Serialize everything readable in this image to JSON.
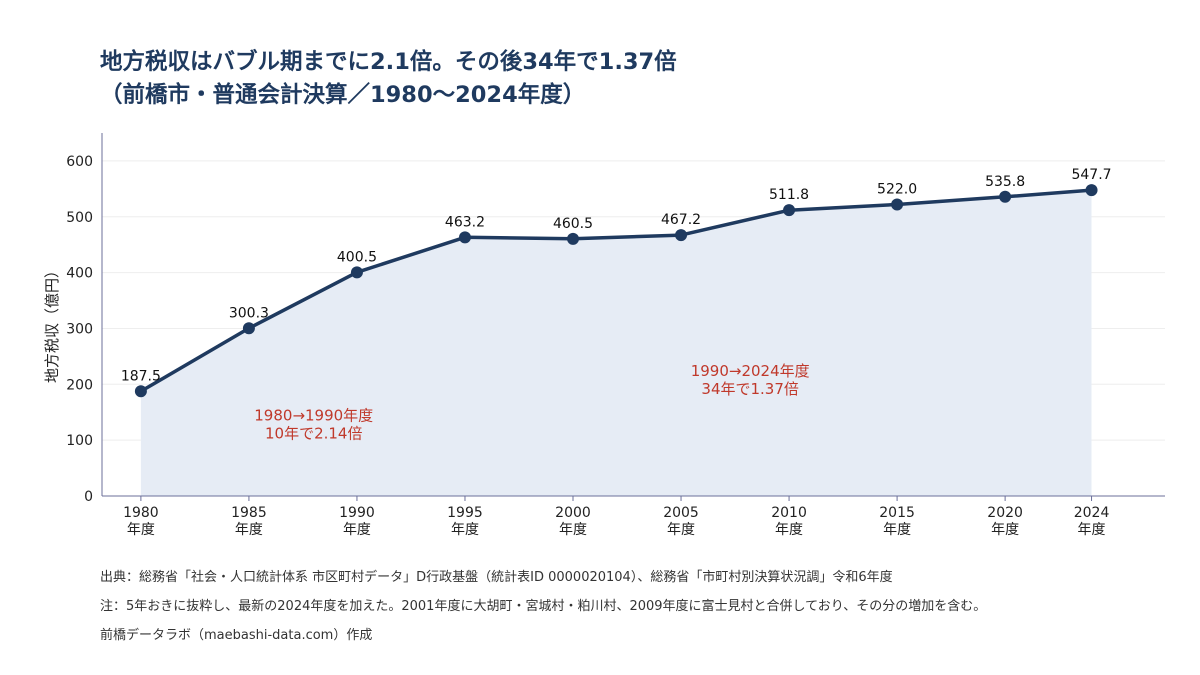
{
  "title": {
    "line1": "地方税収はバブル期までに2.1倍。その後34年で1.37倍",
    "line2": "（前橋市・普通会計決算／1980〜2024年度）"
  },
  "chart_data": {
    "type": "line",
    "title": "地方税収はバブル期までに2.1倍。その後34年で1.37倍（前橋市・普通会計決算／1980〜2024年度）",
    "x": [
      1980,
      1985,
      1990,
      1995,
      2000,
      2005,
      2010,
      2015,
      2020,
      2024
    ],
    "x_tick_labels": [
      "1980",
      "1985",
      "1990",
      "1995",
      "2000",
      "2005",
      "2010",
      "2015",
      "2020",
      "2024"
    ],
    "x_tick_sublabel": "年度",
    "series": [
      {
        "values": [
          187.5,
          300.3,
          400.5,
          463.2,
          460.5,
          467.2,
          511.8,
          522.0,
          535.8,
          547.7
        ]
      }
    ],
    "value_labels": [
      "187.5",
      "300.3",
      "400.5",
      "463.2",
      "460.5",
      "467.2",
      "511.8",
      "522.0",
      "535.8",
      "547.7"
    ],
    "ylabel": "地方税収（億円）",
    "xlabel": "",
    "ylim": [
      0,
      650
    ],
    "yticks": [
      0,
      100,
      200,
      300,
      400,
      500,
      600
    ],
    "grid": true,
    "area_fill": true,
    "colors": {
      "line": "#1f3a5f",
      "area": "#e6ecf5",
      "annotation": "#c0392b",
      "axis": "#6b6f9a",
      "grid": "#eeeeee"
    },
    "annotations": [
      {
        "lines": [
          "1980→1990年度",
          "10年で2.14倍"
        ],
        "x": 1988,
        "y": 135
      },
      {
        "lines": [
          "1990→2024年度",
          "34年で1.37倍"
        ],
        "x": 2008.2,
        "y": 215
      }
    ]
  },
  "footer": {
    "source": "出典：総務省「社会・人口統計体系 市区町村データ」D行政基盤（統計表ID 0000020104）、総務省「市町村別決算状況調」令和6年度",
    "note": "注：5年おきに抜粋し、最新の2024年度を加えた。2001年度に大胡町・宮城村・粕川村、2009年度に富士見村と合併しており、その分の増加を含む。",
    "credit": "前橋データラボ（maebashi-data.com）作成"
  }
}
